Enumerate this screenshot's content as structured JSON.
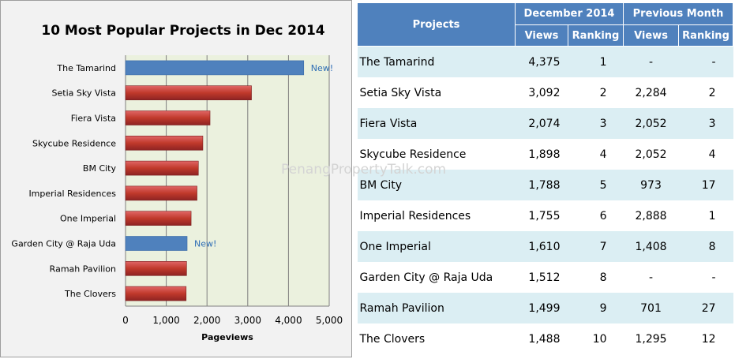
{
  "watermark": "PenangPropertyTalk.com",
  "chart_data": {
    "type": "bar",
    "orientation": "horizontal",
    "title": "10 Most Popular  Projects  in Dec 2014",
    "xlabel": "Pageviews",
    "ylabel": "",
    "xlim": [
      0,
      5000
    ],
    "xticks": [
      "0",
      "1,000",
      "2,000",
      "3,000",
      "4,000",
      "5,000"
    ],
    "grid": true,
    "categories": [
      "The Tamarind",
      "Setia Sky Vista",
      "Fiera Vista",
      "Skycube Residence",
      "BM City",
      "Imperial Residences",
      "One Imperial",
      "Garden City @ Raja Uda",
      "Ramah Pavilion",
      "The Clovers"
    ],
    "values": [
      4375,
      3092,
      2074,
      1898,
      1788,
      1755,
      1610,
      1512,
      1499,
      1488
    ],
    "is_new": [
      true,
      false,
      false,
      false,
      false,
      false,
      false,
      true,
      false,
      false
    ],
    "new_label": "New!",
    "colors": {
      "new": "#4f81bd",
      "existing": "#c0392b",
      "plot_bg": "#ebf1de",
      "grid": "#7f7f7f"
    }
  },
  "table": {
    "header": {
      "projects": "Projects",
      "group_current": "December 2014",
      "group_previous": "Previous Month",
      "views": "Views",
      "ranking": "Ranking"
    },
    "rows": [
      {
        "project": "The Tamarind",
        "views": "4,375",
        "rank": "1",
        "prev_views": "-",
        "prev_rank": "-"
      },
      {
        "project": "Setia Sky Vista",
        "views": "3,092",
        "rank": "2",
        "prev_views": "2,284",
        "prev_rank": "2"
      },
      {
        "project": "Fiera Vista",
        "views": "2,074",
        "rank": "3",
        "prev_views": "2,052",
        "prev_rank": "3"
      },
      {
        "project": "Skycube Residence",
        "views": "1,898",
        "rank": "4",
        "prev_views": "2,052",
        "prev_rank": "4"
      },
      {
        "project": "BM City",
        "views": "1,788",
        "rank": "5",
        "prev_views": "973",
        "prev_rank": "17"
      },
      {
        "project": "Imperial Residences",
        "views": "1,755",
        "rank": "6",
        "prev_views": "2,888",
        "prev_rank": "1"
      },
      {
        "project": "One Imperial",
        "views": "1,610",
        "rank": "7",
        "prev_views": "1,408",
        "prev_rank": "8"
      },
      {
        "project": "Garden City @ Raja Uda",
        "views": "1,512",
        "rank": "8",
        "prev_views": "-",
        "prev_rank": "-"
      },
      {
        "project": "Ramah Pavilion",
        "views": "1,499",
        "rank": "9",
        "prev_views": "701",
        "prev_rank": "27"
      },
      {
        "project": "The Clovers",
        "views": "1,488",
        "rank": "10",
        "prev_views": "1,295",
        "prev_rank": "12"
      }
    ],
    "colors": {
      "header": "#4f81bd",
      "band": "#dbeef3"
    }
  }
}
